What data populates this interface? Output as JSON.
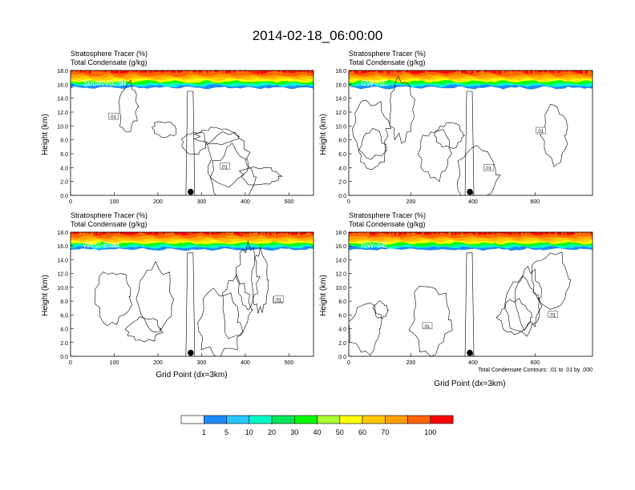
{
  "title": "2014-02-18_06:00:00",
  "panel_title_line1": "Stratosphere Tracer   (%)",
  "panel_title_line2": "Total Condensate   (g/kg)",
  "ylabel": "Height (km)",
  "xlabel": "Grid Point (dx=3km)",
  "footnote": "Total Condensate Contours: .01 to .01 by .000",
  "contour_label": ".01",
  "colors": {
    "palette": [
      "#ffffff",
      "#1e8cff",
      "#28c8ff",
      "#00ffc8",
      "#00e65a",
      "#00ff00",
      "#aaff32",
      "#ffff00",
      "#ffc800",
      "#ffa000",
      "#ff6400",
      "#ff0000"
    ],
    "cross_section_marker": "#000000"
  },
  "colorbar_labels": [
    "1",
    "5",
    "10",
    "20",
    "30",
    "40",
    "50",
    "60",
    "70",
    "100"
  ],
  "chart_data": [
    {
      "type": "heatmap",
      "label": "South-North",
      "x_max": 556,
      "xticks": [
        "0",
        "100",
        "200",
        "300",
        "400",
        "500"
      ],
      "xtick_vals": [
        0,
        100,
        200,
        300,
        400,
        500
      ],
      "ylim": [
        0,
        18
      ],
      "yticks": [
        "0.0",
        "2.0",
        "4.0",
        "6.0",
        "8.0",
        "10.0",
        "12.0",
        "14.0",
        "16.0",
        "18.0"
      ],
      "tropopause_km": 16.0,
      "marker_x": 275
    },
    {
      "type": "heatmap",
      "label": "SW-NE",
      "x_max": 785,
      "xticks": [
        "0",
        "200",
        "400",
        "600"
      ],
      "xtick_vals": [
        0,
        200,
        400,
        600
      ],
      "ylim": [
        0,
        18
      ],
      "yticks": [
        "0.0",
        "2.0",
        "4.0",
        "6.0",
        "8.0",
        "10.0",
        "12.0",
        "14.0",
        "16.0",
        "18.0"
      ],
      "tropopause_km": 16.0,
      "marker_x": 390
    },
    {
      "type": "heatmap",
      "label": "West-East",
      "x_max": 556,
      "xticks": [
        "0",
        "100",
        "200",
        "300",
        "400",
        "500"
      ],
      "xtick_vals": [
        0,
        100,
        200,
        300,
        400,
        500
      ],
      "ylim": [
        0,
        18
      ],
      "yticks": [
        "0.0",
        "2.0",
        "4.0",
        "6.0",
        "8.0",
        "10.0",
        "12.0",
        "14.0",
        "16.0",
        "18.0"
      ],
      "tropopause_km": 16.0,
      "marker_x": 275
    },
    {
      "type": "heatmap",
      "label": "NW-SE",
      "x_max": 785,
      "xticks": [
        "0",
        "200",
        "400",
        "600"
      ],
      "xtick_vals": [
        0,
        200,
        400,
        600
      ],
      "ylim": [
        0,
        18
      ],
      "yticks": [
        "0.0",
        "2.0",
        "4.0",
        "6.0",
        "8.0",
        "10.0",
        "12.0",
        "14.0",
        "16.0",
        "18.0"
      ],
      "tropopause_km": 16.0,
      "marker_x": 390
    }
  ]
}
